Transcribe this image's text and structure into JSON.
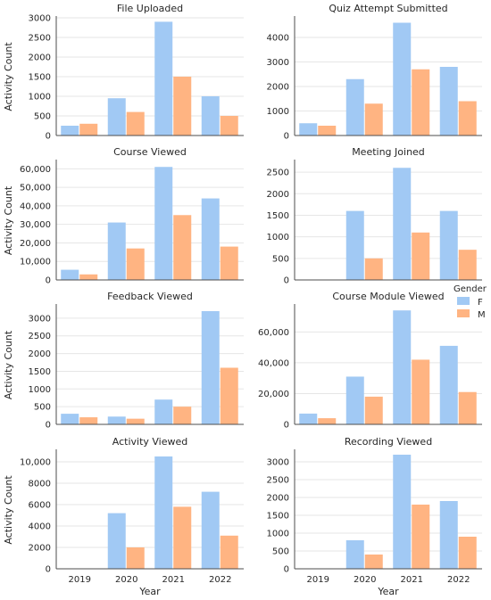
{
  "colors": {
    "F": "#a1c9f4",
    "M": "#ffb482",
    "grid": "#e6e6e6",
    "axis": "#4d4d4d"
  },
  "legend": {
    "title": "Gender",
    "entries": [
      "F",
      "M"
    ]
  },
  "shared": {
    "xlabel": "Year",
    "ylabel": "Activity Count",
    "categories": [
      "2019",
      "2020",
      "2021",
      "2022"
    ]
  },
  "chart_data": [
    {
      "type": "bar",
      "title": "File Uploaded",
      "categories": [
        "2019",
        "2020",
        "2021",
        "2022"
      ],
      "series": [
        {
          "name": "F",
          "values": [
            250,
            950,
            2900,
            1000
          ]
        },
        {
          "name": "M",
          "values": [
            300,
            600,
            1500,
            500
          ]
        }
      ],
      "ylim": [
        0,
        3000
      ],
      "yticks": [
        0,
        500,
        1000,
        1500,
        2000,
        2500,
        3000
      ],
      "ytick_labels": [
        "0",
        "500",
        "1000",
        "1500",
        "2000",
        "2500",
        "3000"
      ],
      "ylabel": "Activity Count",
      "xlabel": ""
    },
    {
      "type": "bar",
      "title": "Quiz Attempt Submitted",
      "categories": [
        "2019",
        "2020",
        "2021",
        "2022"
      ],
      "series": [
        {
          "name": "F",
          "values": [
            500,
            2300,
            4600,
            2800
          ]
        },
        {
          "name": "M",
          "values": [
            400,
            1300,
            2700,
            1400
          ]
        }
      ],
      "ylim": [
        0,
        4800
      ],
      "yticks": [
        0,
        1000,
        2000,
        3000,
        4000
      ],
      "ytick_labels": [
        "0",
        "1000",
        "2000",
        "3000",
        "4000"
      ],
      "ylabel": "",
      "xlabel": ""
    },
    {
      "type": "bar",
      "title": "Course Viewed",
      "categories": [
        "2019",
        "2020",
        "2021",
        "2022"
      ],
      "series": [
        {
          "name": "F",
          "values": [
            5500,
            31000,
            61000,
            44000
          ]
        },
        {
          "name": "M",
          "values": [
            3000,
            17000,
            35000,
            18000
          ]
        }
      ],
      "ylim": [
        0,
        64000
      ],
      "yticks": [
        0,
        10000,
        20000,
        30000,
        40000,
        50000,
        60000
      ],
      "ytick_labels": [
        "0",
        "10,000",
        "20,000",
        "30,000",
        "40,000",
        "50,000",
        "60,000"
      ],
      "ylabel": "Activity Count",
      "xlabel": ""
    },
    {
      "type": "bar",
      "title": "Meeting Joined",
      "categories": [
        "2019",
        "2020",
        "2021",
        "2022"
      ],
      "series": [
        {
          "name": "F",
          "values": [
            10,
            1600,
            2600,
            1600
          ]
        },
        {
          "name": "M",
          "values": [
            5,
            500,
            1100,
            700
          ]
        }
      ],
      "ylim": [
        0,
        2750
      ],
      "yticks": [
        0,
        500,
        1000,
        1500,
        2000,
        2500
      ],
      "ytick_labels": [
        "0",
        "500",
        "1000",
        "1500",
        "2000",
        "2500"
      ],
      "ylabel": "",
      "xlabel": ""
    },
    {
      "type": "bar",
      "title": "Feedback Viewed",
      "categories": [
        "2019",
        "2020",
        "2021",
        "2022"
      ],
      "series": [
        {
          "name": "F",
          "values": [
            300,
            220,
            700,
            3200
          ]
        },
        {
          "name": "M",
          "values": [
            200,
            160,
            500,
            1600
          ]
        }
      ],
      "ylim": [
        0,
        3350
      ],
      "yticks": [
        0,
        500,
        1000,
        1500,
        2000,
        2500,
        3000
      ],
      "ytick_labels": [
        "0",
        "500",
        "1000",
        "1500",
        "2000",
        "2500",
        "3000"
      ],
      "ylabel": "Activity Count",
      "xlabel": ""
    },
    {
      "type": "bar",
      "title": "Course Module Viewed",
      "categories": [
        "2019",
        "2020",
        "2021",
        "2022"
      ],
      "series": [
        {
          "name": "F",
          "values": [
            7000,
            31000,
            74000,
            51000
          ]
        },
        {
          "name": "M",
          "values": [
            4000,
            18000,
            42000,
            21000
          ]
        }
      ],
      "ylim": [
        0,
        77000
      ],
      "yticks": [
        0,
        20000,
        40000,
        60000
      ],
      "ytick_labels": [
        "0",
        "20,000",
        "40,000",
        "60,000"
      ],
      "ylabel": "",
      "xlabel": ""
    },
    {
      "type": "bar",
      "title": "Activity Viewed",
      "categories": [
        "2019",
        "2020",
        "2021",
        "2022"
      ],
      "series": [
        {
          "name": "F",
          "values": [
            15,
            5200,
            10500,
            7200
          ]
        },
        {
          "name": "M",
          "values": [
            10,
            2000,
            5800,
            3100
          ]
        }
      ],
      "ylim": [
        0,
        11000
      ],
      "yticks": [
        0,
        2000,
        4000,
        6000,
        8000,
        10000
      ],
      "ytick_labels": [
        "0",
        "2000",
        "4000",
        "6000",
        "8000",
        "10,000"
      ],
      "ylabel": "Activity Count",
      "xlabel": "Year"
    },
    {
      "type": "bar",
      "title": "Recording Viewed",
      "categories": [
        "2019",
        "2020",
        "2021",
        "2022"
      ],
      "series": [
        {
          "name": "F",
          "values": [
            5,
            800,
            3200,
            1900
          ]
        },
        {
          "name": "M",
          "values": [
            3,
            400,
            1800,
            900
          ]
        }
      ],
      "ylim": [
        0,
        3300
      ],
      "yticks": [
        0,
        500,
        1000,
        1500,
        2000,
        2500,
        3000
      ],
      "ytick_labels": [
        "0",
        "500",
        "1000",
        "1500",
        "2000",
        "2500",
        "3000"
      ],
      "ylabel": "",
      "xlabel": "Year"
    }
  ]
}
